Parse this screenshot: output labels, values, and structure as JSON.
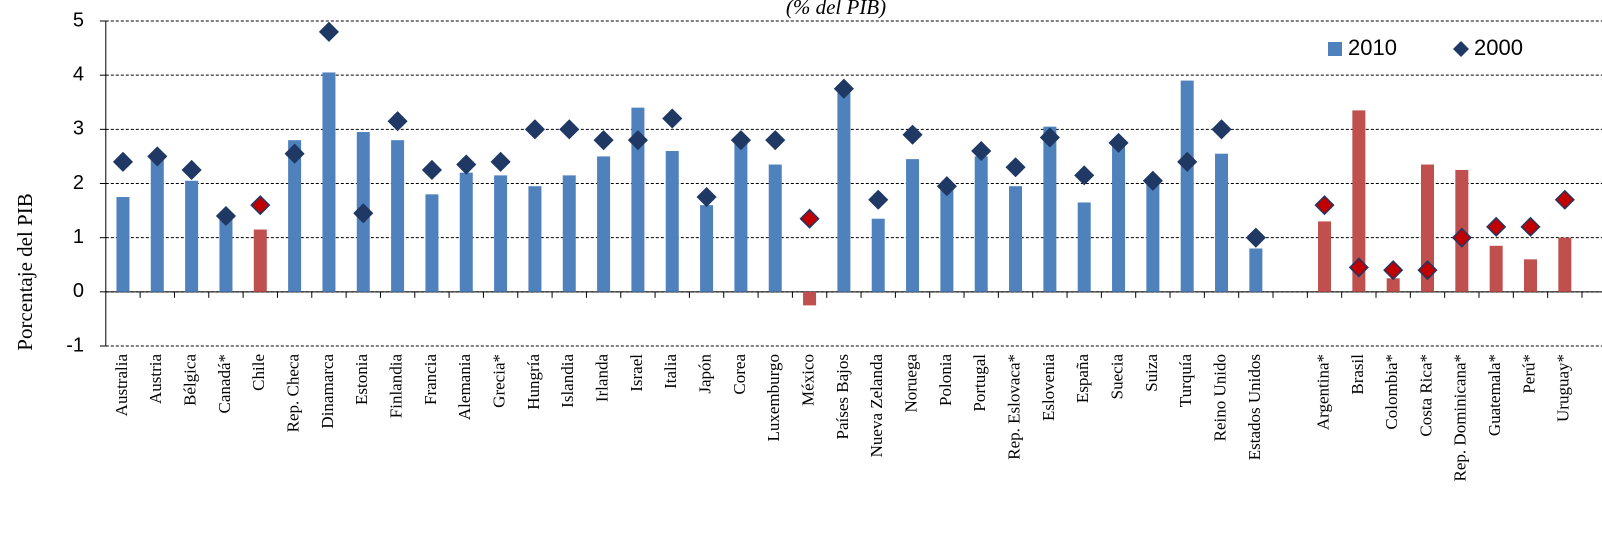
{
  "chart_data": {
    "type": "bar",
    "subtitle": "(% del PIB)",
    "y_label": "Porcentaje del PIB",
    "categories": [
      "Australia",
      "Austria",
      "Bélgica",
      "Canadá*",
      "Chile",
      "Rep. Checa",
      "Dinamarca",
      "Estonia",
      "Finlandia",
      "Francia",
      "Alemania",
      "Grecia*",
      "Hungría",
      "Islandia",
      "Irlanda",
      "Israel",
      "Italia",
      "Japón",
      "Corea",
      "Luxemburgo",
      "México",
      "Países Bajos",
      "Nueva Zelanda",
      "Noruega",
      "Polonia",
      "Portugal",
      "Rep. Eslovaca*",
      "Eslovenia",
      "España",
      "Suecia",
      "Suiza",
      "Turquía",
      "Reino Unido",
      "Estados Unidos",
      null,
      "Argentina*",
      "Brasil",
      "Colombia*",
      "Costa Rica*",
      "Rep. Dominicana*",
      "Guatemala*",
      "Perú*",
      "Uruguay*"
    ],
    "series": [
      {
        "name": "2010",
        "type": "bar",
        "color": "#4f81bd",
        "colors": [
          "#4f81bd",
          "#4f81bd",
          "#4f81bd",
          "#4f81bd",
          "#c0504d",
          "#4f81bd",
          "#4f81bd",
          "#4f81bd",
          "#4f81bd",
          "#4f81bd",
          "#4f81bd",
          "#4f81bd",
          "#4f81bd",
          "#4f81bd",
          "#4f81bd",
          "#4f81bd",
          "#4f81bd",
          "#4f81bd",
          "#4f81bd",
          "#4f81bd",
          "#c0504d",
          "#4f81bd",
          "#4f81bd",
          "#4f81bd",
          "#4f81bd",
          "#4f81bd",
          "#4f81bd",
          "#4f81bd",
          "#4f81bd",
          "#4f81bd",
          "#4f81bd",
          "#4f81bd",
          "#4f81bd",
          "#4f81bd",
          "#4f81bd",
          "#c0504d",
          "#c0504d",
          "#c0504d",
          "#c0504d",
          "#c0504d",
          "#c0504d",
          "#c0504d",
          "#c0504d"
        ],
        "values": [
          1.75,
          2.5,
          2.05,
          1.35,
          1.15,
          2.8,
          4.05,
          2.95,
          2.8,
          1.8,
          2.2,
          2.15,
          1.95,
          2.15,
          2.5,
          3.4,
          2.6,
          1.6,
          2.75,
          2.35,
          -0.25,
          3.8,
          1.35,
          2.45,
          1.9,
          2.5,
          1.95,
          3.05,
          1.65,
          2.7,
          2.1,
          3.9,
          2.55,
          0.8,
          null,
          1.3,
          3.35,
          0.25,
          2.35,
          2.25,
          0.85,
          0.6,
          1.0
        ]
      },
      {
        "name": "2000",
        "type": "scatter",
        "color": "#1f3864",
        "colors": [
          "#1f3864",
          "#1f3864",
          "#1f3864",
          "#1f3864",
          "#c00000",
          "#1f3864",
          "#1f3864",
          "#1f3864",
          "#1f3864",
          "#1f3864",
          "#1f3864",
          "#1f3864",
          "#1f3864",
          "#1f3864",
          "#1f3864",
          "#1f3864",
          "#1f3864",
          "#1f3864",
          "#1f3864",
          "#1f3864",
          "#c00000",
          "#1f3864",
          "#1f3864",
          "#1f3864",
          "#1f3864",
          "#1f3864",
          "#1f3864",
          "#1f3864",
          "#1f3864",
          "#1f3864",
          "#1f3864",
          "#1f3864",
          "#1f3864",
          "#1f3864",
          "#1f3864",
          "#c00000",
          "#c00000",
          "#c00000",
          "#c00000",
          "#c00000",
          "#c00000",
          "#c00000",
          "#c00000"
        ],
        "values": [
          2.4,
          2.5,
          2.25,
          1.4,
          1.6,
          2.55,
          4.8,
          1.45,
          3.15,
          2.25,
          2.35,
          2.4,
          3.0,
          3.0,
          2.8,
          2.8,
          3.2,
          1.75,
          2.8,
          2.8,
          1.35,
          3.75,
          1.7,
          2.9,
          1.95,
          2.6,
          2.3,
          2.85,
          2.15,
          2.75,
          2.05,
          2.4,
          3.0,
          1.0,
          null,
          1.6,
          0.45,
          0.4,
          0.4,
          1.0,
          1.2,
          1.2,
          1.7
        ]
      }
    ],
    "ylim": [
      -1,
      5
    ],
    "yticks": [
      -1,
      0,
      1,
      2,
      3,
      4,
      5
    ],
    "grid": true,
    "legend": "top-right"
  }
}
